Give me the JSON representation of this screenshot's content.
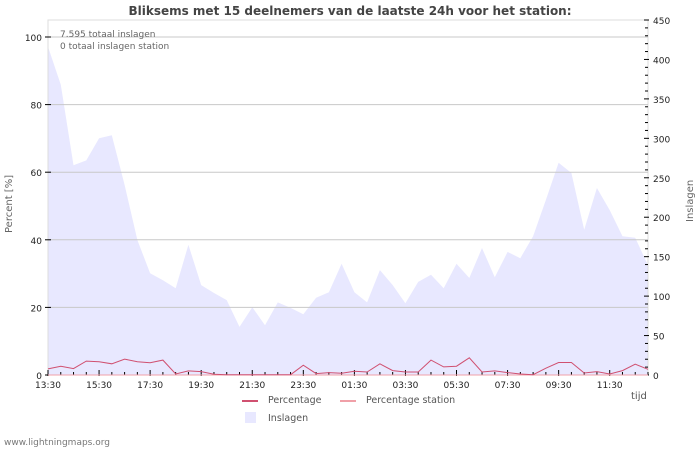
{
  "title": "Bliksems met 15 deelnemers van de laatste 24h voor het station:",
  "annotations": {
    "total_strikes": "7.595 totaal inslagen",
    "total_station": "0 totaal inslagen station"
  },
  "footer": "www.lightningmaps.org",
  "legend": {
    "percentage": "Percentage",
    "percentage_station": "Percentage station",
    "strikes": "Inslagen"
  },
  "axis": {
    "left_label": "Percent   [%]",
    "right_label": "Inslagen",
    "x_label": "tijd"
  },
  "colors": {
    "percentage": "#d05070",
    "percentage_station": "#f0a0a8",
    "strikes_fill": "#e8e8ff",
    "grid": "#c8c8c8"
  },
  "chart_data": {
    "type": "area",
    "title": "Bliksems met 15 deelnemers van de laatste 24h voor het station:",
    "xlabel": "tijd",
    "ylabel": "Percent [%]",
    "y2label": "Inslagen",
    "ylim": [
      0,
      100
    ],
    "y2lim": [
      0,
      450
    ],
    "yticks": [
      0,
      20,
      40,
      60,
      80,
      100
    ],
    "y2ticks": [
      0,
      50,
      100,
      150,
      200,
      250,
      300,
      350,
      400,
      450
    ],
    "xtick_labels": [
      "13:30",
      "15:30",
      "17:30",
      "19:30",
      "21:30",
      "23:30",
      "01:30",
      "03:30",
      "05:30",
      "07:30",
      "09:30",
      "11:30"
    ],
    "grid": true,
    "legend_position": "bottom",
    "x": [
      "13:30",
      "14:00",
      "14:30",
      "15:00",
      "15:30",
      "16:00",
      "16:30",
      "17:00",
      "17:30",
      "18:00",
      "18:30",
      "19:00",
      "19:30",
      "20:00",
      "20:30",
      "21:00",
      "21:30",
      "22:00",
      "22:30",
      "23:00",
      "23:30",
      "00:00",
      "00:30",
      "01:00",
      "01:30",
      "02:00",
      "02:30",
      "03:00",
      "03:30",
      "04:00",
      "04:30",
      "05:00",
      "05:30",
      "06:00",
      "06:30",
      "07:00",
      "07:30",
      "08:00",
      "08:30",
      "09:00",
      "09:30",
      "10:00",
      "10:30",
      "11:00",
      "11:30",
      "12:00",
      "12:30",
      "13:00"
    ],
    "series": [
      {
        "name": "Inslagen",
        "axis": "right",
        "type": "area",
        "values": [
          416,
          368,
          266,
          272,
          300,
          304,
          241,
          171,
          129,
          120,
          110,
          165,
          114,
          104,
          95,
          61,
          86,
          63,
          92,
          85,
          77,
          98,
          105,
          141,
          105,
          92,
          133,
          114,
          91,
          118,
          127,
          110,
          141,
          123,
          161,
          124,
          156,
          148,
          176,
          222,
          269,
          256,
          184,
          237,
          209,
          176,
          174,
          139
        ]
      },
      {
        "name": "Percentage",
        "axis": "left",
        "type": "line",
        "values": [
          1.8,
          2.6,
          1.9,
          4.1,
          3.9,
          3.3,
          4.7,
          3.9,
          3.6,
          4.4,
          0.3,
          1.2,
          1.0,
          0.2,
          0.1,
          0.1,
          0.1,
          0.1,
          0.1,
          0.1,
          2.9,
          0.4,
          0.7,
          0.5,
          1.1,
          0.9,
          3.3,
          1.3,
          0.9,
          0.9,
          4.4,
          2.4,
          2.6,
          5.1,
          0.9,
          1.2,
          0.7,
          0.3,
          0.1,
          2.0,
          3.7,
          3.7,
          0.6,
          1.0,
          0.3,
          1.3,
          3.2,
          1.7
        ]
      },
      {
        "name": "Percentage station",
        "axis": "left",
        "type": "line",
        "values": [
          0,
          0,
          0,
          0,
          0,
          0,
          0,
          0,
          0,
          0,
          0,
          0,
          0,
          0,
          0,
          0,
          0,
          0,
          0,
          0,
          0,
          0,
          0,
          0,
          0,
          0,
          0,
          0,
          0,
          0,
          0,
          0,
          0,
          0,
          0,
          0,
          0,
          0,
          0,
          0,
          0,
          0,
          0,
          0,
          0,
          0,
          0,
          0
        ]
      }
    ]
  }
}
